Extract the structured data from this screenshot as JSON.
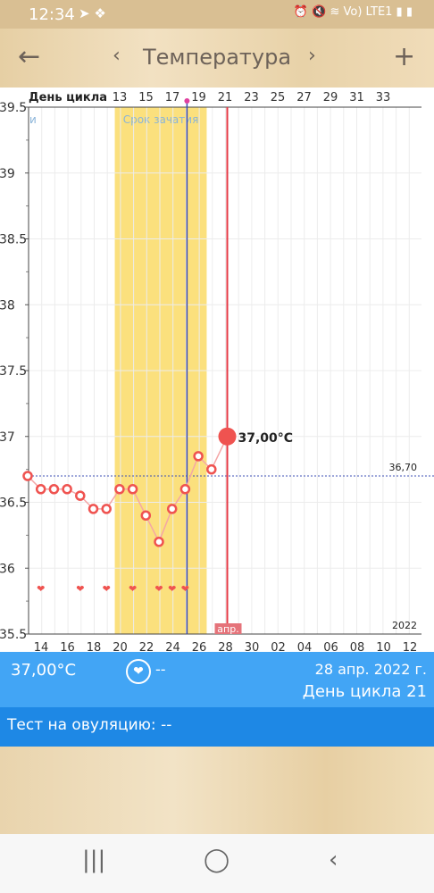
{
  "status_bar": {
    "time": "12:34",
    "left_icons": "➤ ❖",
    "right_icons": "⏰ 🔇 ≋ Vo) LTE1 ▮ ▮"
  },
  "header": {
    "back_icon": "arrow-left",
    "prev_icon": "chevron-left",
    "title": "Температура",
    "next_icon": "chevron-right",
    "add_icon": "plus"
  },
  "chart_data": {
    "type": "line",
    "top_axis_label": "День цикла",
    "top_ticks": [
      "13",
      "15",
      "17",
      "19",
      "21",
      "23",
      "25",
      "27",
      "29",
      "31",
      "33"
    ],
    "bottom_ticks": [
      "14",
      "16",
      "18",
      "20",
      "22",
      "24",
      "26",
      "28",
      "30",
      "02",
      "04",
      "06",
      "08",
      "10",
      "12"
    ],
    "month_label": "апр.",
    "year_label": "2022",
    "fertile_window_label": "Срок зачатия",
    "left_edge_label": "и",
    "coverline_value_label": "36,70",
    "coverline": 36.7,
    "ylim": [
      35.5,
      39.5
    ],
    "y_ticks": [
      "35.5",
      "36",
      "36.5",
      "37",
      "37.5",
      "38",
      "38.5",
      "39",
      "39.5"
    ],
    "x_dates": [
      13,
      14,
      15,
      16,
      17,
      18,
      19,
      20,
      21,
      22,
      23,
      24,
      25,
      26,
      27
    ],
    "temperatures": [
      36.7,
      36.6,
      36.6,
      36.6,
      36.55,
      36.45,
      36.45,
      36.6,
      36.6,
      36.4,
      36.2,
      36.45,
      36.6,
      36.85,
      36.75
    ],
    "current_point": {
      "date": 28,
      "value": 37.0,
      "label": "37,00°C"
    },
    "sex_markers_dates": [
      14,
      17,
      19,
      21,
      23,
      24,
      25
    ],
    "fertile_window_dates": [
      20,
      26
    ],
    "ovulation_date": 25,
    "today_date": 28,
    "colors": {
      "line": "#f4a6a6",
      "point": "#ef5350",
      "fertile": "#fbe07d",
      "ovulation": "#3949ab",
      "today": "#e53945",
      "coverline": "#3f51b5"
    }
  },
  "info": {
    "temperature": "37,00°C",
    "heart_icon": "heart",
    "heart_value": "--",
    "date": "28 апр. 2022 г.",
    "cycle_day": "День цикла 21"
  },
  "ovulation_test": {
    "label": "Тест на овуляцию: --"
  },
  "navbar": {
    "recents_icon": "|||",
    "home_icon": "◯",
    "back_icon": "‹"
  }
}
